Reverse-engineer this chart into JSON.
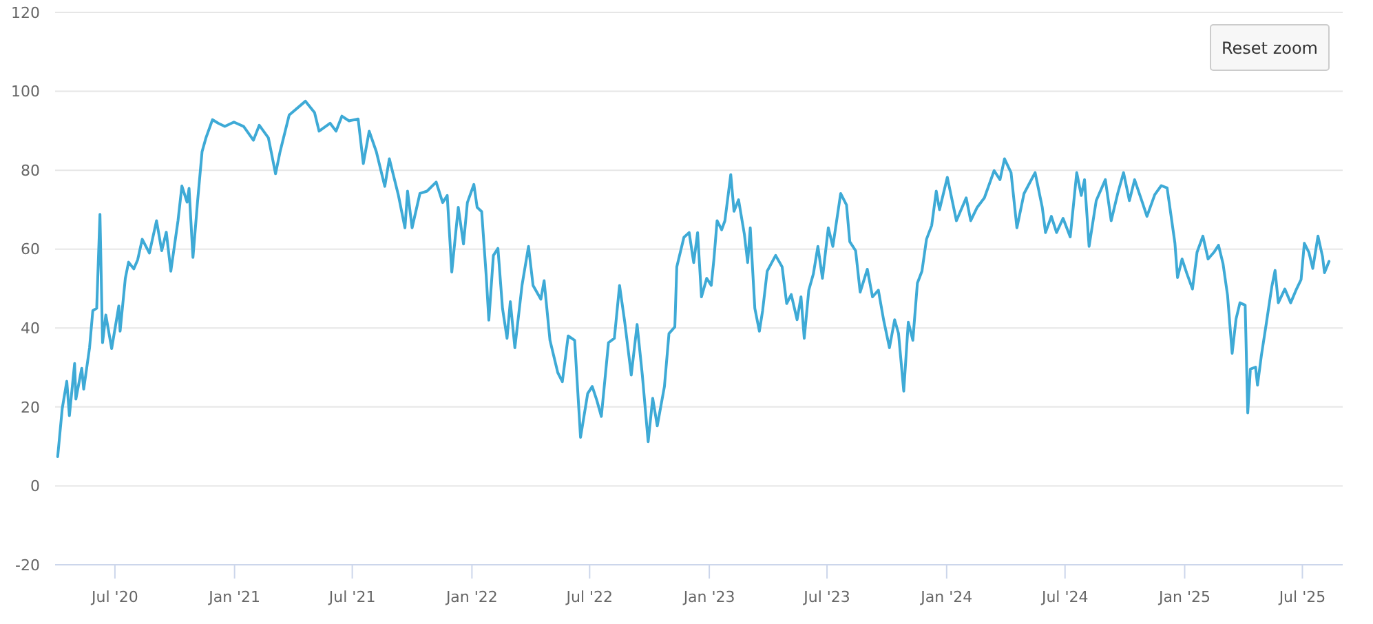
{
  "chart_data": {
    "type": "line",
    "x": [
      "2020-04-04",
      "2020-04-11",
      "2020-04-18",
      "2020-04-22",
      "2020-04-30",
      "2020-05-02",
      "2020-05-11",
      "2020-05-14",
      "2020-05-23",
      "2020-05-28",
      "2020-06-03",
      "2020-06-08",
      "2020-06-12",
      "2020-06-17",
      "2020-06-26",
      "2020-07-07",
      "2020-07-09",
      "2020-07-17",
      "2020-07-22",
      "2020-07-30",
      "2020-08-05",
      "2020-08-12",
      "2020-08-23",
      "2020-09-03",
      "2020-09-11",
      "2020-09-18",
      "2020-09-25",
      "2020-10-06",
      "2020-10-12",
      "2020-10-20",
      "2020-10-23",
      "2020-10-29",
      "2020-11-05",
      "2020-11-12",
      "2020-11-18",
      "2020-11-28",
      "2020-12-07",
      "2020-12-17",
      "2020-12-31",
      "2021-01-15",
      "2021-01-30",
      "2021-02-08",
      "2021-02-22",
      "2021-02-27",
      "2021-03-05",
      "2021-03-12",
      "2021-03-26",
      "2021-04-20",
      "2021-05-04",
      "2021-05-11",
      "2021-05-28",
      "2021-06-06",
      "2021-06-15",
      "2021-06-26",
      "2021-07-10",
      "2021-07-18",
      "2021-07-27",
      "2021-08-07",
      "2021-08-20",
      "2021-08-27",
      "2021-09-10",
      "2021-09-20",
      "2021-09-24",
      "2021-10-01",
      "2021-10-13",
      "2021-10-24",
      "2021-11-07",
      "2021-11-17",
      "2021-11-24",
      "2021-12-01",
      "2021-12-11",
      "2021-12-19",
      "2021-12-25",
      "2022-01-04",
      "2022-01-09",
      "2022-01-16",
      "2022-01-23",
      "2022-01-27",
      "2022-02-03",
      "2022-02-10",
      "2022-02-17",
      "2022-02-24",
      "2022-03-01",
      "2022-03-08",
      "2022-03-19",
      "2022-03-29",
      "2022-04-05",
      "2022-04-17",
      "2022-04-22",
      "2022-05-01",
      "2022-05-13",
      "2022-05-20",
      "2022-05-29",
      "2022-06-08",
      "2022-06-17",
      "2022-06-28",
      "2022-07-05",
      "2022-07-12",
      "2022-07-19",
      "2022-07-30",
      "2022-08-08",
      "2022-08-16",
      "2022-08-24",
      "2022-09-03",
      "2022-09-12",
      "2022-09-20",
      "2022-09-29",
      "2022-10-06",
      "2022-10-13",
      "2022-10-24",
      "2022-10-31",
      "2022-11-09",
      "2022-11-12",
      "2022-11-23",
      "2022-12-01",
      "2022-12-08",
      "2022-12-14",
      "2022-12-20",
      "2022-12-28",
      "2023-01-04",
      "2023-01-08",
      "2023-01-13",
      "2023-01-20",
      "2023-01-25",
      "2023-02-03",
      "2023-02-08",
      "2023-02-15",
      "2023-02-24",
      "2023-03-01",
      "2023-03-05",
      "2023-03-12",
      "2023-03-19",
      "2023-03-24",
      "2023-03-31",
      "2023-04-13",
      "2023-04-23",
      "2023-04-30",
      "2023-05-07",
      "2023-05-16",
      "2023-05-22",
      "2023-05-27",
      "2023-06-03",
      "2023-06-10",
      "2023-06-17",
      "2023-06-24",
      "2023-07-03",
      "2023-07-10",
      "2023-07-22",
      "2023-07-31",
      "2023-08-05",
      "2023-08-14",
      "2023-08-21",
      "2023-09-01",
      "2023-09-09",
      "2023-09-18",
      "2023-09-26",
      "2023-10-05",
      "2023-10-13",
      "2023-10-19",
      "2023-10-27",
      "2023-11-03",
      "2023-11-10",
      "2023-11-17",
      "2023-11-24",
      "2023-12-01",
      "2023-12-09",
      "2023-12-16",
      "2023-12-21",
      "2024-01-02",
      "2024-01-16",
      "2024-01-31",
      "2024-02-07",
      "2024-02-17",
      "2024-02-28",
      "2024-03-14",
      "2024-03-23",
      "2024-03-30",
      "2024-04-09",
      "2024-04-18",
      "2024-04-29",
      "2024-05-16",
      "2024-05-27",
      "2024-06-01",
      "2024-06-10",
      "2024-06-18",
      "2024-06-28",
      "2024-07-09",
      "2024-07-19",
      "2024-07-26",
      "2024-07-31",
      "2024-08-07",
      "2024-08-18",
      "2024-09-01",
      "2024-09-10",
      "2024-09-20",
      "2024-09-29",
      "2024-10-08",
      "2024-10-16",
      "2024-10-28",
      "2024-11-04",
      "2024-11-16",
      "2024-11-26",
      "2024-12-05",
      "2024-12-10",
      "2024-12-17",
      "2024-12-21",
      "2024-12-28",
      "2025-01-04",
      "2025-01-13",
      "2025-01-20",
      "2025-01-29",
      "2025-02-06",
      "2025-02-15",
      "2025-02-22",
      "2025-03-01",
      "2025-03-08",
      "2025-03-15",
      "2025-03-21",
      "2025-03-27",
      "2025-04-04",
      "2025-04-08",
      "2025-04-12",
      "2025-04-20",
      "2025-04-23",
      "2025-04-29",
      "2025-05-06",
      "2025-05-15",
      "2025-05-20",
      "2025-05-25",
      "2025-06-04",
      "2025-06-13",
      "2025-06-22",
      "2025-06-29",
      "2025-07-04",
      "2025-07-11",
      "2025-07-17",
      "2025-07-25",
      "2025-08-01",
      "2025-08-04",
      "2025-08-11"
    ],
    "series": [
      {
        "color": "#3eaad6",
        "values": [
          7.4,
          19.6,
          26.5,
          17.8,
          31,
          22,
          29.8,
          24.5,
          35,
          44.4,
          45,
          68.8,
          36.3,
          43.3,
          34.8,
          45.6,
          39.2,
          52.6,
          56.7,
          55,
          57.3,
          62.5,
          59,
          67.2,
          59.6,
          64.3,
          54.4,
          67.2,
          76,
          71.9,
          75.4,
          57.9,
          71.9,
          84.7,
          88.2,
          92.8,
          91.9,
          91.1,
          92.2,
          91.1,
          87.6,
          91.4,
          88.2,
          84.1,
          79.1,
          84.7,
          94,
          97.5,
          94.6,
          89.9,
          91.9,
          89.9,
          93.7,
          92.5,
          93,
          81.7,
          89.9,
          84.7,
          75.9,
          82.9,
          73.6,
          65.4,
          74.7,
          65.4,
          74.1,
          74.7,
          77,
          71.8,
          73.6,
          54.2,
          70.6,
          61.3,
          71.8,
          76.4,
          70.6,
          69.5,
          53.1,
          42,
          58.4,
          60.2,
          45,
          37.4,
          46.7,
          35,
          50.8,
          60.7,
          50.8,
          47.3,
          52,
          36.9,
          28.7,
          26.4,
          38,
          36.9,
          12.3,
          23.4,
          25.2,
          21.7,
          17.6,
          36.3,
          37.4,
          50.8,
          41.5,
          28.1,
          40.9,
          28.1,
          11.2,
          22.2,
          15.2,
          25.2,
          38.6,
          40.3,
          55.5,
          63,
          64.2,
          56.6,
          64.2,
          47.9,
          52.6,
          50.8,
          57.3,
          67.2,
          64.9,
          67.2,
          78.9,
          69.6,
          72.5,
          63.7,
          56.6,
          65.4,
          45,
          39.2,
          44.4,
          54.4,
          58.4,
          55.5,
          46.2,
          48.5,
          42.1,
          47.9,
          37.4,
          49.6,
          53.7,
          60.7,
          52.6,
          65.4,
          60.7,
          74.1,
          71.2,
          61.9,
          59.6,
          49.1,
          54.9,
          47.9,
          49.6,
          42.1,
          35,
          42.1,
          38.6,
          24,
          41.5,
          36.9,
          51.4,
          54.4,
          62.5,
          66,
          74.7,
          70,
          78.2,
          67.2,
          73,
          67.2,
          70.6,
          73,
          79.9,
          77.6,
          82.9,
          79.4,
          65.4,
          74.1,
          79.4,
          70.6,
          64.2,
          68.3,
          64.2,
          67.8,
          63.1,
          79.4,
          73.6,
          77.6,
          60.7,
          72.3,
          77.6,
          67.2,
          74.1,
          79.4,
          72.3,
          77.6,
          71.8,
          68.3,
          73.8,
          76.1,
          75.5,
          69.7,
          61.5,
          52.8,
          57.5,
          54,
          49.9,
          59.2,
          63.3,
          57.5,
          59.2,
          61,
          56.3,
          48.2,
          33.6,
          42.3,
          46.4,
          45.8,
          18.5,
          29.6,
          30.1,
          25.5,
          33.1,
          40.6,
          50.5,
          54.6,
          46.4,
          49.9,
          46.4,
          49.9,
          52.3,
          61.5,
          59.2,
          55.1,
          63.3,
          58.1,
          54,
          56.9
        ]
      }
    ],
    "xlim": [
      "2020-03-31",
      "2025-09-01"
    ],
    "xticks": [
      {
        "value": "2020-07-01",
        "label": "Jul '20"
      },
      {
        "value": "2021-01-01",
        "label": "Jan '21"
      },
      {
        "value": "2021-07-01",
        "label": "Jul '21"
      },
      {
        "value": "2022-01-01",
        "label": "Jan '22"
      },
      {
        "value": "2022-07-01",
        "label": "Jul '22"
      },
      {
        "value": "2023-01-01",
        "label": "Jan '23"
      },
      {
        "value": "2023-07-01",
        "label": "Jul '23"
      },
      {
        "value": "2024-01-01",
        "label": "Jan '24"
      },
      {
        "value": "2024-07-01",
        "label": "Jul '24"
      },
      {
        "value": "2025-01-01",
        "label": "Jan '25"
      },
      {
        "value": "2025-07-01",
        "label": "Jul '25"
      }
    ],
    "ylim": [
      -20,
      120
    ],
    "yticks": [
      -20,
      0,
      20,
      40,
      60,
      80,
      100,
      120
    ],
    "grid": "y",
    "annotations": [
      "Reset zoom"
    ]
  }
}
